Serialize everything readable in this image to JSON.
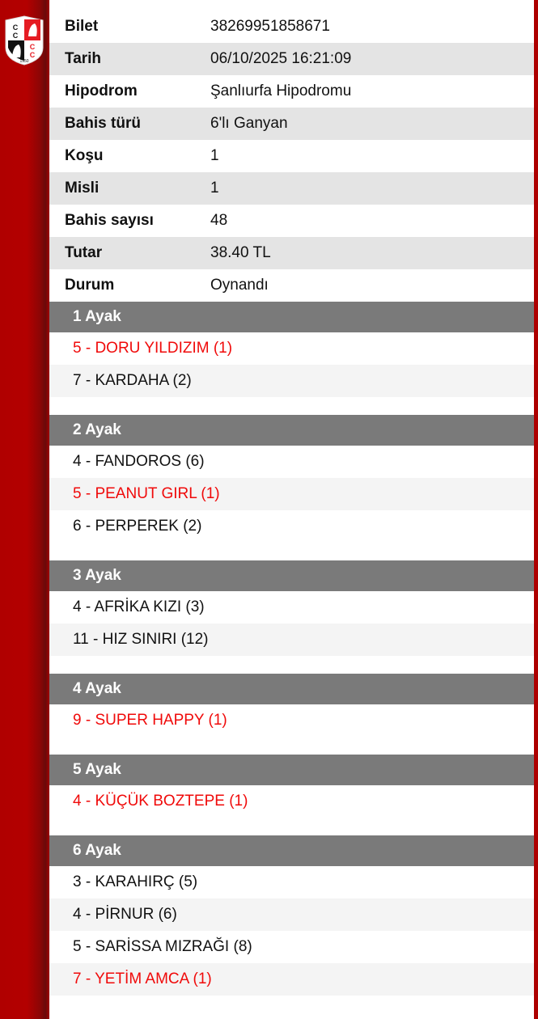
{
  "colors": {
    "sidebar": "#b00000",
    "header": "#7a7a7a",
    "winner": "#f00a0a",
    "alt_row": "#e4e4e4"
  },
  "logo": {
    "text": "CC 1950"
  },
  "ticket": [
    {
      "label": "Bilet",
      "value": "38269951858671"
    },
    {
      "label": "Tarih",
      "value": "06/10/2025 16:21:09"
    },
    {
      "label": "Hipodrom",
      "value": "Şanlıurfa Hipodromu"
    },
    {
      "label": "Bahis türü",
      "value": "6'lı Ganyan"
    },
    {
      "label": "Koşu",
      "value": "1"
    },
    {
      "label": "Misli",
      "value": "1"
    },
    {
      "label": "Bahis sayısı",
      "value": "48"
    },
    {
      "label": "Tutar",
      "value": "38.40 TL"
    },
    {
      "label": "Durum",
      "value": "Oynandı"
    }
  ],
  "legs": [
    {
      "title": "1 Ayak",
      "horses": [
        {
          "text": "5 - DORU YILDIZIM (1)",
          "winner": true
        },
        {
          "text": "7 - KARDAHA (2)",
          "winner": false
        }
      ]
    },
    {
      "title": "2 Ayak",
      "horses": [
        {
          "text": "4 - FANDOROS (6)",
          "winner": false
        },
        {
          "text": "5 - PEANUT GIRL (1)",
          "winner": true
        },
        {
          "text": "6 - PERPEREK (2)",
          "winner": false
        }
      ]
    },
    {
      "title": "3 Ayak",
      "horses": [
        {
          "text": "4 - AFRİKA KIZI (3)",
          "winner": false
        },
        {
          "text": "11 - HIZ SINIRI (12)",
          "winner": false
        }
      ]
    },
    {
      "title": "4 Ayak",
      "horses": [
        {
          "text": "9 - SUPER HAPPY (1)",
          "winner": true
        }
      ]
    },
    {
      "title": "5 Ayak",
      "horses": [
        {
          "text": "4 - KÜÇÜK BOZTEPE (1)",
          "winner": true
        }
      ]
    },
    {
      "title": "6 Ayak",
      "horses": [
        {
          "text": "3 - KARAHIRÇ (5)",
          "winner": false
        },
        {
          "text": "4 - PİRNUR (6)",
          "winner": false
        },
        {
          "text": "5 - SARİSSA MIZRAĞI (8)",
          "winner": false
        },
        {
          "text": "7 - YETİM AMCA (1)",
          "winner": true
        }
      ]
    }
  ]
}
